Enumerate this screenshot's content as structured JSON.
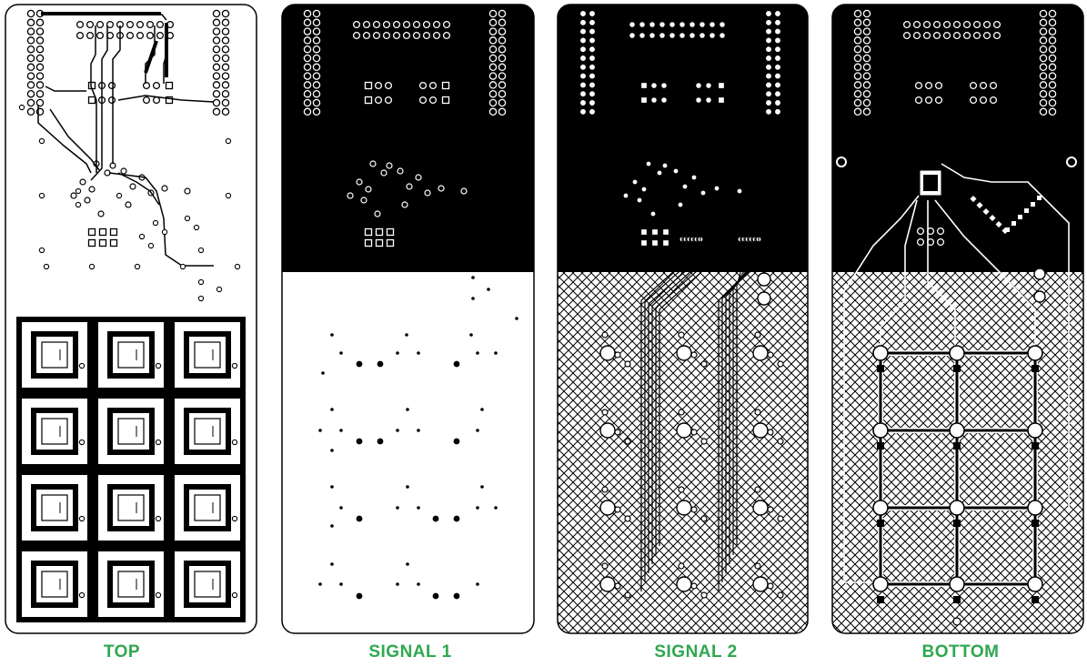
{
  "colors": {
    "label": "#2fa84f",
    "copper": "#000000",
    "board": "#ffffff",
    "outline": "#000000"
  },
  "layers": [
    {
      "name": "TOP"
    },
    {
      "name": "SIGNAL 1"
    },
    {
      "name": "SIGNAL 2"
    },
    {
      "name": "BOTTOM"
    }
  ]
}
